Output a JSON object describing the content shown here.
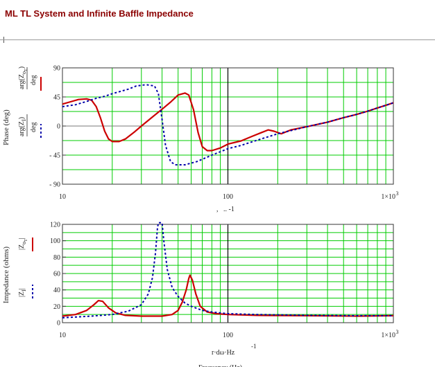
{
  "page": {
    "title": "ML TL System and Infinite Baffle Impedance"
  },
  "colors": {
    "series_ml": "#cc0000",
    "series_ib": "#0000aa",
    "grid": "#00cc00",
    "marker": "#000000",
    "axis": "#333333"
  },
  "chart_data": [
    {
      "type": "line",
      "ylabel": "Phase (deg)",
      "xscale": "log",
      "xlim": [
        10,
        1000
      ],
      "ylim": [
        -90,
        90
      ],
      "yticks": [
        {
          "value": 90,
          "label": "90"
        },
        {
          "value": 45,
          "label": "45"
        },
        {
          "value": 0,
          "label": "0"
        },
        {
          "value": -45,
          "label": "- 45"
        },
        {
          "value": -90,
          "label": "- 90"
        }
      ],
      "xticks": [
        {
          "value": 10,
          "label": "10"
        },
        {
          "value": 100,
          "label": "100"
        },
        {
          "value": 1000,
          "label": "1×10",
          "sup": "3"
        }
      ],
      "xlabel_fragment": ",   .. -1",
      "marker_x": 100,
      "legend": [
        {
          "main": "arg(Z",
          "sub": "o",
          "subsub": "T",
          "close": ")",
          "unit": "deg",
          "style": "solid"
        },
        {
          "main": "arg(Z",
          "sub": "I",
          "subsub": "",
          "close": ")",
          "unit": "deg",
          "style": "dashed"
        }
      ],
      "series": [
        {
          "style": "solid",
          "points": [
            [
              10,
              34
            ],
            [
              11,
              37
            ],
            [
              12.5,
              41
            ],
            [
              14,
              42
            ],
            [
              15,
              40
            ],
            [
              16,
              30
            ],
            [
              17,
              12
            ],
            [
              18,
              -8
            ],
            [
              19,
              -20
            ],
            [
              20,
              -24
            ],
            [
              22,
              -24
            ],
            [
              24,
              -20
            ],
            [
              27,
              -10
            ],
            [
              30,
              0
            ],
            [
              35,
              14
            ],
            [
              40,
              26
            ],
            [
              45,
              37
            ],
            [
              50,
              48
            ],
            [
              55,
              51
            ],
            [
              58,
              48
            ],
            [
              62,
              25
            ],
            [
              66,
              -10
            ],
            [
              70,
              -32
            ],
            [
              75,
              -38
            ],
            [
              80,
              -38
            ],
            [
              90,
              -34
            ],
            [
              100,
              -28
            ],
            [
              120,
              -23
            ],
            [
              140,
              -16
            ],
            [
              160,
              -10
            ],
            [
              175,
              -6
            ],
            [
              190,
              -8
            ],
            [
              210,
              -12
            ],
            [
              240,
              -6
            ],
            [
              300,
              -1
            ],
            [
              400,
              6
            ],
            [
              500,
              13
            ],
            [
              600,
              18
            ],
            [
              700,
              23
            ],
            [
              800,
              28
            ],
            [
              900,
              32
            ],
            [
              1000,
              36
            ]
          ]
        },
        {
          "style": "dashed",
          "points": [
            [
              10,
              30
            ],
            [
              12,
              33
            ],
            [
              14,
              38
            ],
            [
              16,
              43
            ],
            [
              18,
              46
            ],
            [
              20,
              50
            ],
            [
              25,
              57
            ],
            [
              28,
              62
            ],
            [
              32,
              64
            ],
            [
              36,
              62
            ],
            [
              38,
              50
            ],
            [
              40,
              10
            ],
            [
              42,
              -30
            ],
            [
              45,
              -55
            ],
            [
              48,
              -60
            ],
            [
              55,
              -60
            ],
            [
              65,
              -55
            ],
            [
              80,
              -45
            ],
            [
              100,
              -35
            ],
            [
              120,
              -30
            ],
            [
              150,
              -22
            ],
            [
              200,
              -12
            ],
            [
              250,
              -6
            ],
            [
              300,
              -1
            ],
            [
              400,
              6
            ],
            [
              500,
              13
            ],
            [
              600,
              18
            ],
            [
              700,
              23
            ],
            [
              800,
              28
            ],
            [
              900,
              32
            ],
            [
              1000,
              36
            ]
          ]
        }
      ]
    },
    {
      "type": "line",
      "ylabel": "Impedance (ohms)",
      "xscale": "log",
      "xlim": [
        10,
        1000
      ],
      "ylim": [
        0,
        120
      ],
      "yticks": [
        {
          "value": 120,
          "label": "120"
        },
        {
          "value": 100,
          "label": "100"
        },
        {
          "value": 80,
          "label": "80"
        },
        {
          "value": 60,
          "label": "60"
        },
        {
          "value": 40,
          "label": "40"
        },
        {
          "value": 20,
          "label": "20"
        },
        {
          "value": 0,
          "label": "0"
        }
      ],
      "xticks": [
        {
          "value": 10,
          "label": "10"
        },
        {
          "value": 100,
          "label": "100"
        },
        {
          "value": 1000,
          "label": "1×10",
          "sup": "3"
        }
      ],
      "xlabel": "r·dω·Hz",
      "xlabel_sup": "-1",
      "xlabel_second": "Frequency (Hz)",
      "marker_x": 100,
      "legend": [
        {
          "main": "|Z",
          "sub": "o",
          "subsub": "T",
          "close": "|",
          "unit": "",
          "style": "solid"
        },
        {
          "main": "|Z",
          "sub": "I",
          "subsub": "",
          "close": "|",
          "unit": "",
          "style": "dashed"
        }
      ],
      "series": [
        {
          "style": "solid",
          "points": [
            [
              10,
              8
            ],
            [
              12,
              10
            ],
            [
              14,
              15
            ],
            [
              15.5,
              22
            ],
            [
              16.5,
              27
            ],
            [
              17.5,
              26
            ],
            [
              19,
              18
            ],
            [
              21,
              12
            ],
            [
              24,
              9
            ],
            [
              30,
              8
            ],
            [
              40,
              8
            ],
            [
              46,
              10
            ],
            [
              50,
              15
            ],
            [
              53,
              25
            ],
            [
              56,
              40
            ],
            [
              58,
              54
            ],
            [
              59,
              58
            ],
            [
              61,
              52
            ],
            [
              64,
              35
            ],
            [
              68,
              20
            ],
            [
              75,
              13
            ],
            [
              85,
              11
            ],
            [
              100,
              10
            ],
            [
              150,
              9
            ],
            [
              300,
              8.5
            ],
            [
              600,
              8
            ],
            [
              1000,
              8.5
            ]
          ]
        },
        {
          "style": "dashed",
          "points": [
            [
              10,
              6
            ],
            [
              15,
              8
            ],
            [
              20,
              10
            ],
            [
              25,
              14
            ],
            [
              30,
              22
            ],
            [
              33,
              35
            ],
            [
              35,
              55
            ],
            [
              36.5,
              85
            ],
            [
              37.5,
              115
            ],
            [
              38,
              122
            ],
            [
              40,
              122
            ],
            [
              41,
              100
            ],
            [
              43,
              65
            ],
            [
              46,
              43
            ],
            [
              50,
              32
            ],
            [
              55,
              24
            ],
            [
              60,
              20
            ],
            [
              70,
              15
            ],
            [
              80,
              13
            ],
            [
              100,
              11
            ],
            [
              150,
              10
            ],
            [
              300,
              9
            ],
            [
              600,
              8.5
            ],
            [
              1000,
              8.5
            ]
          ]
        }
      ]
    }
  ]
}
